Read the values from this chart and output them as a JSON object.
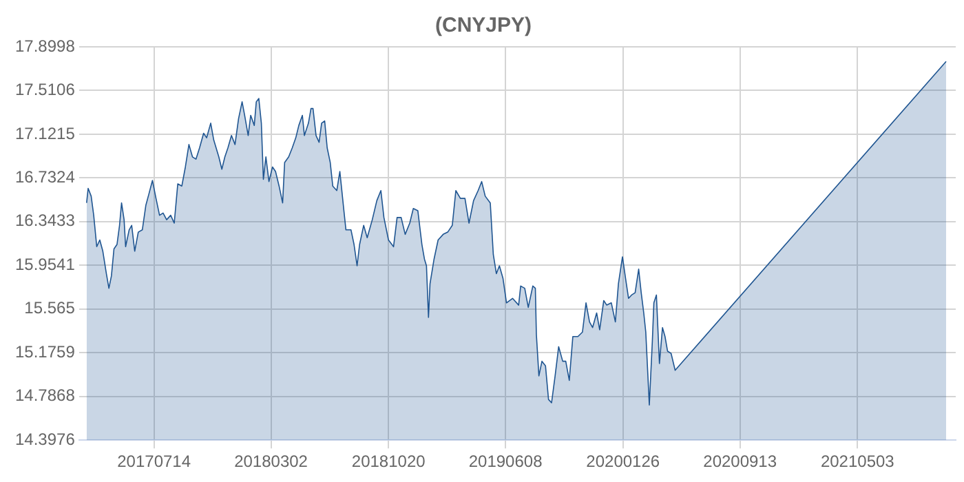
{
  "chart_data": {
    "type": "area",
    "title": "(CNYJPY)",
    "x": [
      "2017-03-03",
      "2017-03-06",
      "2017-03-12",
      "2017-03-17",
      "2017-03-23",
      "2017-03-29",
      "2017-04-04",
      "2017-04-11",
      "2017-04-16",
      "2017-04-21",
      "2017-04-26",
      "2017-05-02",
      "2017-05-07",
      "2017-05-11",
      "2017-05-16",
      "2017-05-19",
      "2017-05-26",
      "2017-05-31",
      "2017-06-06",
      "2017-06-13",
      "2017-06-21",
      "2017-06-28",
      "2017-07-04",
      "2017-07-11",
      "2017-07-18",
      "2017-07-25",
      "2017-08-01",
      "2017-08-08",
      "2017-08-16",
      "2017-08-23",
      "2017-08-30",
      "2017-09-07",
      "2017-09-14",
      "2017-09-21",
      "2017-09-28",
      "2017-10-05",
      "2017-10-12",
      "2017-10-20",
      "2017-10-26",
      "2017-11-03",
      "2017-11-09",
      "2017-11-19",
      "2017-11-25",
      "2017-12-01",
      "2017-12-07",
      "2017-12-14",
      "2017-12-21",
      "2017-12-28",
      "2018-01-04",
      "2018-01-09",
      "2018-01-16",
      "2018-01-21",
      "2018-01-28",
      "2018-02-01",
      "2018-02-06",
      "2018-02-11",
      "2018-02-15",
      "2018-02-20",
      "2018-02-26",
      "2018-03-05",
      "2018-03-11",
      "2018-03-18",
      "2018-03-25",
      "2018-03-29",
      "2018-04-06",
      "2018-04-13",
      "2018-04-20",
      "2018-04-26",
      "2018-05-03",
      "2018-05-07",
      "2018-05-15",
      "2018-05-20",
      "2018-05-24",
      "2018-05-30",
      "2018-06-05",
      "2018-06-10",
      "2018-06-16",
      "2018-06-21",
      "2018-06-27",
      "2018-07-02",
      "2018-07-10",
      "2018-07-16",
      "2018-07-24",
      "2018-07-28",
      "2018-08-07",
      "2018-08-13",
      "2018-08-19",
      "2018-08-24",
      "2018-09-01",
      "2018-09-08",
      "2018-09-18",
      "2018-09-27",
      "2018-10-05",
      "2018-10-11",
      "2018-10-20",
      "2018-10-30",
      "2018-11-06",
      "2018-11-14",
      "2018-11-22",
      "2018-12-01",
      "2018-12-08",
      "2018-12-17",
      "2018-12-25",
      "2018-12-30",
      "2019-01-03",
      "2019-01-07",
      "2019-01-10",
      "2019-01-18",
      "2019-01-26",
      "2019-02-05",
      "2019-02-14",
      "2019-02-23",
      "2019-03-02",
      "2019-03-11",
      "2019-03-20",
      "2019-03-28",
      "2019-04-06",
      "2019-04-15",
      "2019-04-22",
      "2019-04-29",
      "2019-05-09",
      "2019-05-15",
      "2019-05-21",
      "2019-05-27",
      "2019-06-03",
      "2019-06-10",
      "2019-06-22",
      "2019-07-04",
      "2019-07-08",
      "2019-07-16",
      "2019-07-23",
      "2019-08-01",
      "2019-08-06",
      "2019-08-08",
      "2019-08-13",
      "2019-08-19",
      "2019-08-26",
      "2019-09-01",
      "2019-09-07",
      "2019-09-14",
      "2019-09-21",
      "2019-09-29",
      "2019-10-05",
      "2019-10-12",
      "2019-10-19",
      "2019-10-29",
      "2019-11-07",
      "2019-11-14",
      "2019-11-21",
      "2019-11-27",
      "2019-12-05",
      "2019-12-11",
      "2019-12-19",
      "2019-12-25",
      "2020-01-03",
      "2020-01-11",
      "2020-01-17",
      "2020-01-25",
      "2020-01-31",
      "2020-02-06",
      "2020-02-12",
      "2020-02-19",
      "2020-02-26",
      "2020-03-02",
      "2020-03-07",
      "2020-03-11",
      "2020-03-18",
      "2020-03-24",
      "2020-03-27",
      "2020-04-01",
      "2020-04-07",
      "2020-04-13",
      "2020-04-18",
      "2020-04-23",
      "2020-04-30",
      "2020-05-08",
      "2021-10-25"
    ],
    "series": [
      {
        "color": "#1f5591",
        "values": [
          16.51,
          16.64,
          16.57,
          16.4,
          16.12,
          16.18,
          16.08,
          15.88,
          15.75,
          15.86,
          16.1,
          16.14,
          16.31,
          16.51,
          16.36,
          16.12,
          16.27,
          16.31,
          16.08,
          16.25,
          16.27,
          16.49,
          16.59,
          16.71,
          16.55,
          16.4,
          16.42,
          16.36,
          16.4,
          16.33,
          16.68,
          16.66,
          16.83,
          17.03,
          16.92,
          16.9,
          17.0,
          17.13,
          17.09,
          17.22,
          17.07,
          16.92,
          16.81,
          16.92,
          17.0,
          17.11,
          17.03,
          17.26,
          17.41,
          17.29,
          17.11,
          17.29,
          17.2,
          17.41,
          17.44,
          17.22,
          16.72,
          16.92,
          16.7,
          16.83,
          16.79,
          16.66,
          16.51,
          16.87,
          16.92,
          17.0,
          17.09,
          17.2,
          17.29,
          17.11,
          17.22,
          17.35,
          17.35,
          17.11,
          17.05,
          17.22,
          17.24,
          17.0,
          16.87,
          16.66,
          16.62,
          16.79,
          16.44,
          16.27,
          16.27,
          16.14,
          15.95,
          16.14,
          16.31,
          16.2,
          16.36,
          16.53,
          16.62,
          16.38,
          16.18,
          16.12,
          16.38,
          16.38,
          16.23,
          16.33,
          16.46,
          16.44,
          16.14,
          16.01,
          15.95,
          15.49,
          15.79,
          16.01,
          16.18,
          16.23,
          16.25,
          16.31,
          16.62,
          16.55,
          16.55,
          16.33,
          16.53,
          16.62,
          16.7,
          16.57,
          16.51,
          16.05,
          15.88,
          15.95,
          15.84,
          15.62,
          15.66,
          15.6,
          15.77,
          15.75,
          15.58,
          15.77,
          15.75,
          15.34,
          14.97,
          15.1,
          15.06,
          14.76,
          14.73,
          14.97,
          15.23,
          15.1,
          15.1,
          14.93,
          15.32,
          15.32,
          15.36,
          15.62,
          15.45,
          15.4,
          15.53,
          15.38,
          15.64,
          15.6,
          15.62,
          15.45,
          15.79,
          16.03,
          15.84,
          15.66,
          15.69,
          15.71,
          15.92,
          15.71,
          15.53,
          15.36,
          14.71,
          15.28,
          15.62,
          15.69,
          15.08,
          15.4,
          15.32,
          15.19,
          15.17,
          15.02,
          17.77
        ]
      }
    ],
    "xlim": [
      "2017-02-16",
      "2021-11-13"
    ],
    "xticks": [
      {
        "value": "2017-07-14",
        "label": "20170714"
      },
      {
        "value": "2018-03-02",
        "label": "20180302"
      },
      {
        "value": "2018-10-20",
        "label": "20181020"
      },
      {
        "value": "2019-06-08",
        "label": "20190608"
      },
      {
        "value": "2020-01-26",
        "label": "20200126"
      },
      {
        "value": "2020-09-13",
        "label": "20200913"
      },
      {
        "value": "2021-05-03",
        "label": "20210503"
      }
    ],
    "ylim": [
      14.3976,
      17.8998
    ],
    "yticks": [
      14.3976,
      14.7868,
      15.1759,
      15.565,
      15.9541,
      16.3433,
      16.7324,
      17.1215,
      17.5106,
      17.8998
    ],
    "grid": true,
    "legend": false,
    "marker": "none",
    "line_style": "solid"
  }
}
